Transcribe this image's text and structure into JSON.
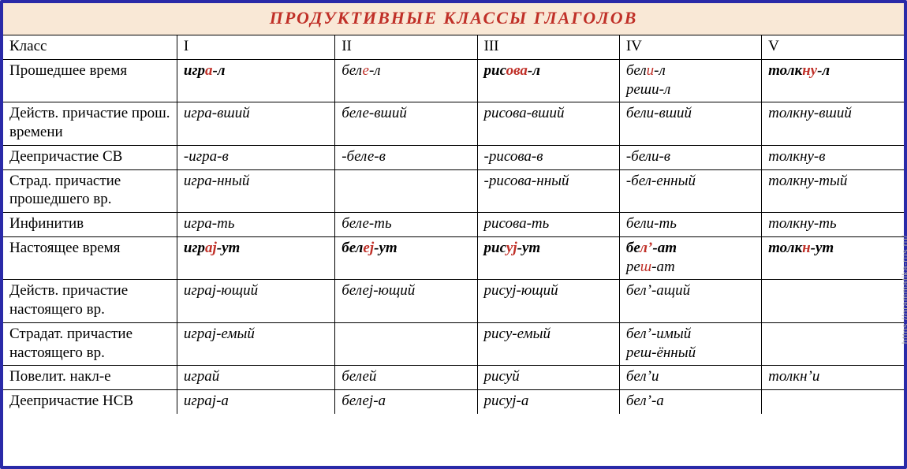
{
  "title": "ПРОДУКТИВНЫЕ  КЛАССЫ  ГЛАГОЛОВ",
  "watermark": "https://grammatika-rus.ru/",
  "colors": {
    "frame_border": "#2a2aa8",
    "title_bg": "#f9e8d6",
    "title_text": "#c03028",
    "highlight": "#c03028",
    "cell_border": "#000000",
    "background": "#ffffff"
  },
  "header_row": [
    "Класс",
    "I",
    "II",
    "III",
    "IV",
    "V"
  ],
  "rows": [
    {
      "label": "Прошедшее время",
      "cells": [
        [
          {
            "bold": true,
            "parts": [
              {
                "t": "игр"
              },
              {
                "t": "а",
                "hl": true
              },
              {
                "t": "-л"
              }
            ]
          }
        ],
        [
          {
            "parts": [
              {
                "t": "бел"
              },
              {
                "t": "е",
                "hl": true
              },
              {
                "t": "-л"
              }
            ]
          }
        ],
        [
          {
            "bold": true,
            "parts": [
              {
                "t": "рис"
              },
              {
                "t": "ова",
                "hl": true
              },
              {
                "t": "-л"
              }
            ]
          }
        ],
        [
          {
            "parts": [
              {
                "t": "бел"
              },
              {
                "t": "и",
                "hl": true
              },
              {
                "t": "-л"
              }
            ]
          },
          {
            "parts": [
              {
                "t": "реши-л"
              }
            ]
          }
        ],
        [
          {
            "bold": true,
            "parts": [
              {
                "t": "толк"
              },
              {
                "t": "ну",
                "hl": true
              },
              {
                "t": "-л"
              }
            ]
          }
        ]
      ]
    },
    {
      "label": "Действ. причастие прош. времени",
      "cells": [
        [
          {
            "parts": [
              {
                "t": "игра-вший"
              }
            ]
          }
        ],
        [
          {
            "parts": [
              {
                "t": "беле-вший"
              }
            ]
          }
        ],
        [
          {
            "parts": [
              {
                "t": "рисова-вший"
              }
            ]
          }
        ],
        [
          {
            "parts": [
              {
                "t": "бели-вший"
              }
            ]
          }
        ],
        [
          {
            "parts": [
              {
                "t": "толкну-вший"
              }
            ]
          }
        ]
      ]
    },
    {
      "label": "Деепричастие СВ",
      "cells": [
        [
          {
            "parts": [
              {
                "t": "-игра-в"
              }
            ]
          }
        ],
        [
          {
            "parts": [
              {
                "t": "-беле-в"
              }
            ]
          }
        ],
        [
          {
            "parts": [
              {
                "t": "-рисова-в"
              }
            ]
          }
        ],
        [
          {
            "parts": [
              {
                "t": "-бели-в"
              }
            ]
          }
        ],
        [
          {
            "parts": [
              {
                "t": "толкну-в"
              }
            ]
          }
        ]
      ]
    },
    {
      "label": "Страд. причастие прошедшего вр.",
      "cells": [
        [
          {
            "parts": [
              {
                "t": "игра-нный"
              }
            ]
          }
        ],
        [],
        [
          {
            "parts": [
              {
                "t": "-рисова-нный"
              }
            ]
          }
        ],
        [
          {
            "parts": [
              {
                "t": "-бел-енный"
              }
            ]
          }
        ],
        [
          {
            "parts": [
              {
                "t": "толкну-тый"
              }
            ]
          }
        ]
      ]
    },
    {
      "label": "Инфинитив",
      "cells": [
        [
          {
            "parts": [
              {
                "t": "игра-ть"
              }
            ]
          }
        ],
        [
          {
            "parts": [
              {
                "t": "беле-ть"
              }
            ]
          }
        ],
        [
          {
            "parts": [
              {
                "t": "рисова-ть"
              }
            ]
          }
        ],
        [
          {
            "parts": [
              {
                "t": "бели-ть"
              }
            ]
          }
        ],
        [
          {
            "parts": [
              {
                "t": "толкну-ть"
              }
            ]
          }
        ]
      ]
    },
    {
      "label": "Настоящее время",
      "cells": [
        [
          {
            "bold": true,
            "parts": [
              {
                "t": "игр"
              },
              {
                "t": "аj",
                "hl": true
              },
              {
                "t": "-ут"
              }
            ]
          }
        ],
        [
          {
            "bold": true,
            "parts": [
              {
                "t": "бел"
              },
              {
                "t": "еj",
                "hl": true
              },
              {
                "t": "-ут"
              }
            ]
          }
        ],
        [
          {
            "bold": true,
            "parts": [
              {
                "t": "рис"
              },
              {
                "t": "уj",
                "hl": true
              },
              {
                "t": "-ут"
              }
            ]
          }
        ],
        [
          {
            "bold": true,
            "parts": [
              {
                "t": "бе"
              },
              {
                "t": "л’",
                "hl": true
              },
              {
                "t": "-ат"
              }
            ]
          },
          {
            "parts": [
              {
                "t": "ре"
              },
              {
                "t": "ш",
                "hl": true
              },
              {
                "t": "-ат"
              }
            ]
          }
        ],
        [
          {
            "bold": true,
            "parts": [
              {
                "t": "толк"
              },
              {
                "t": "н",
                "hl": true
              },
              {
                "t": "-ут"
              }
            ]
          }
        ]
      ]
    },
    {
      "label": "Действ. причастие настоящего вр.",
      "cells": [
        [
          {
            "parts": [
              {
                "t": "играj-ющий"
              }
            ]
          }
        ],
        [
          {
            "parts": [
              {
                "t": "белеj-ющий"
              }
            ]
          }
        ],
        [
          {
            "parts": [
              {
                "t": "рисуj-ющий"
              }
            ]
          }
        ],
        [
          {
            "parts": [
              {
                "t": "бел’-ащий"
              }
            ]
          }
        ],
        []
      ]
    },
    {
      "label": "Страдат. причастие настоящего вр.",
      "cells": [
        [
          {
            "parts": [
              {
                "t": "играj-емый"
              }
            ]
          }
        ],
        [],
        [
          {
            "parts": [
              {
                "t": "рису-емый"
              }
            ]
          }
        ],
        [
          {
            "parts": [
              {
                "t": "бел’-имый"
              }
            ]
          },
          {
            "parts": [
              {
                "t": "реш-ённый"
              }
            ]
          }
        ],
        []
      ]
    },
    {
      "label": "Повелит. накл-е",
      "cells": [
        [
          {
            "parts": [
              {
                "t": "играй"
              }
            ]
          }
        ],
        [
          {
            "parts": [
              {
                "t": "белей"
              }
            ]
          }
        ],
        [
          {
            "parts": [
              {
                "t": "рисуй"
              }
            ]
          }
        ],
        [
          {
            "parts": [
              {
                "t": "бел’и"
              }
            ]
          }
        ],
        [
          {
            "parts": [
              {
                "t": "толкн’и"
              }
            ]
          }
        ]
      ]
    },
    {
      "label": "Деепричастие НСВ",
      "cells": [
        [
          {
            "parts": [
              {
                "t": "играj-а"
              }
            ]
          }
        ],
        [
          {
            "parts": [
              {
                "t": "белеj-а"
              }
            ]
          }
        ],
        [
          {
            "parts": [
              {
                "t": "рисуj-а"
              }
            ]
          }
        ],
        [
          {
            "parts": [
              {
                "t": "бел’-а"
              }
            ]
          }
        ],
        []
      ]
    }
  ]
}
